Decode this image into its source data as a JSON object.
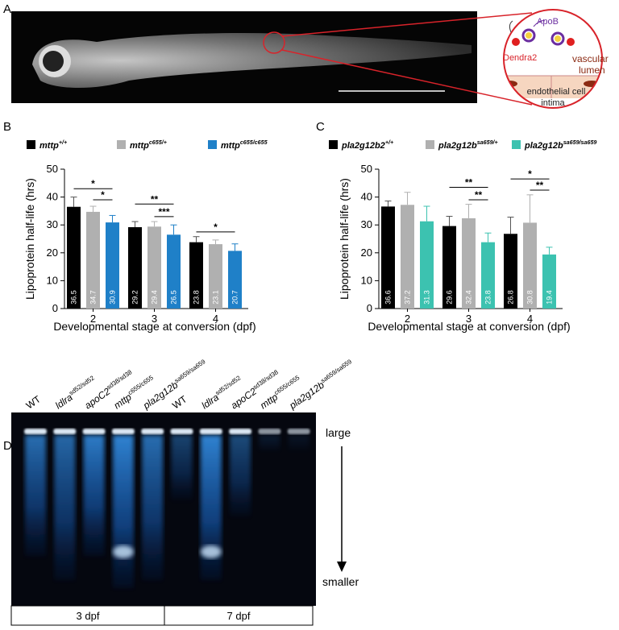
{
  "panels": {
    "a": "A",
    "b": "B",
    "c": "C",
    "d": "D"
  },
  "schematic": {
    "apob": "ApoB",
    "dendra2": "Dendra2",
    "vascular_lumen": [
      "vascular",
      "lumen"
    ],
    "endothelial_cell": "endothelial cell",
    "intima": "intima"
  },
  "chart_data": [
    {
      "type": "bar",
      "categories": [
        "2",
        "3",
        "4"
      ],
      "xlabel": "Developmental stage at conversion (dpf)",
      "ylabel": "Lipoprotein half-life (hrs)",
      "ylim": [
        0,
        50
      ],
      "yticks": [
        0,
        10,
        20,
        30,
        40,
        50
      ],
      "series": [
        {
          "name": "mttp",
          "sup": "+/+",
          "color": "#000000",
          "values": [
            36.5,
            29.2,
            23.8
          ],
          "errors": [
            3.5,
            2.0,
            2.0
          ]
        },
        {
          "name": "mttp",
          "sup": "c655/+",
          "color": "#b0b0b0",
          "values": [
            34.7,
            29.4,
            23.1
          ],
          "errors": [
            2.0,
            1.8,
            1.5
          ]
        },
        {
          "name": "mttp",
          "sup": "c655/c655",
          "color": "#1f80c8",
          "values": [
            30.9,
            26.5,
            20.7
          ],
          "errors": [
            2.5,
            3.5,
            2.5
          ]
        }
      ],
      "brackets": [
        {
          "label": "*",
          "category": 0,
          "from": 0,
          "to": 2,
          "y": 43
        },
        {
          "label": "*",
          "category": 0,
          "from": 1,
          "to": 2,
          "y": 39
        },
        {
          "label": "**",
          "category": 1,
          "from": 0,
          "to": 2,
          "y": 37.5
        },
        {
          "label": "***",
          "category": 1,
          "from": 1,
          "to": 2,
          "y": 33
        },
        {
          "label": "*",
          "category": 2,
          "from": 0,
          "to": 2,
          "y": 27.5
        }
      ]
    },
    {
      "type": "bar",
      "categories": [
        "2",
        "3",
        "4"
      ],
      "xlabel": "Developmental stage at conversion (dpf)",
      "ylabel": "Lipoprotein half-life (hrs)",
      "ylim": [
        0,
        50
      ],
      "yticks": [
        0,
        10,
        20,
        30,
        40,
        50
      ],
      "series": [
        {
          "name": "pla2g12b2",
          "sup": "+/+",
          "color": "#000000",
          "values": [
            36.6,
            29.6,
            26.8
          ],
          "errors": [
            2.0,
            3.5,
            6.0
          ]
        },
        {
          "name": "pla2g12b",
          "sup": "sa659/+",
          "color": "#b0b0b0",
          "values": [
            37.2,
            32.4,
            30.8
          ],
          "errors": [
            4.5,
            5.0,
            10.0
          ]
        },
        {
          "name": "pla2g12b",
          "sup": "sa659/sa659",
          "color": "#3cc2b0",
          "values": [
            31.3,
            23.8,
            19.4
          ],
          "errors": [
            5.4,
            3.3,
            2.6
          ]
        }
      ],
      "brackets": [
        {
          "label": "**",
          "category": 1,
          "from": 0,
          "to": 2,
          "y": 43.5
        },
        {
          "label": "**",
          "category": 1,
          "from": 1,
          "to": 2,
          "y": 39
        },
        {
          "label": "*",
          "category": 2,
          "from": 0,
          "to": 2,
          "y": 46.5
        },
        {
          "label": "**",
          "category": 2,
          "from": 1,
          "to": 2,
          "y": 42.5
        }
      ]
    }
  ],
  "gel": {
    "lanes": [
      {
        "name": "WT"
      },
      {
        "name": "ldlra",
        "sup": "sd52/sd52"
      },
      {
        "name": "apoC2",
        "sup": "sd38/sd38"
      },
      {
        "name": "mttp",
        "sup": "c655/c655"
      },
      {
        "name": "pla2g12b",
        "sup": "sa659/sa659"
      },
      {
        "name": "WT"
      },
      {
        "name": "ldlra",
        "sup": "sd52/sd52"
      },
      {
        "name": "apoC2",
        "sup": "sd38/sd38"
      },
      {
        "name": "mttp",
        "sup": "c655/c655"
      },
      {
        "name": "pla2g12b",
        "sup": "sa659/sa659"
      }
    ],
    "size_labels": {
      "top": "large",
      "bottom": "smaller"
    },
    "stages": [
      "3 dpf",
      "7 dpf"
    ]
  }
}
